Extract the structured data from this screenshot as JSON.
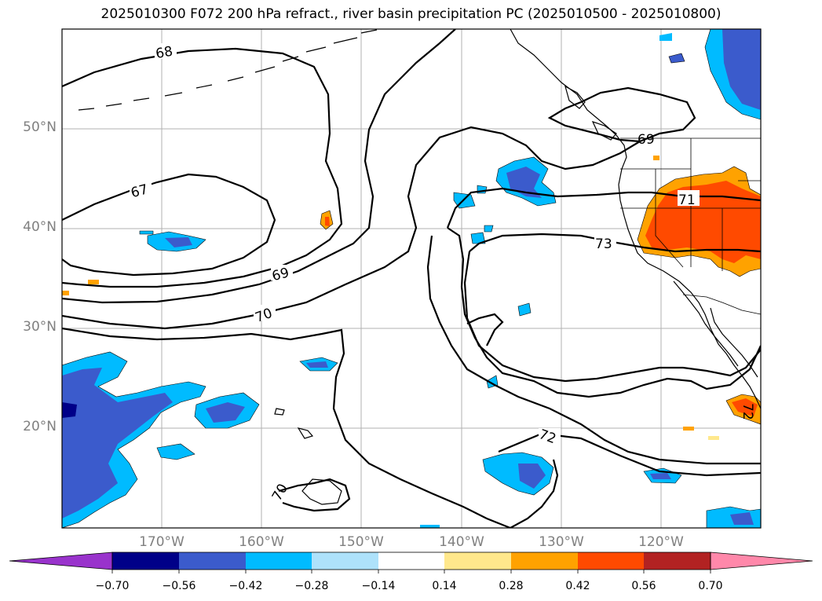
{
  "title": "2025010300 F072 200 hPa refract., river basin precipitation PC (2025010500 - 2025010800)",
  "map": {
    "lat_labels": [
      {
        "text": "50°N",
        "lat": 50
      },
      {
        "text": "40°N",
        "lat": 40
      },
      {
        "text": "30°N",
        "lat": 30
      },
      {
        "text": "20°N",
        "lat": 20
      }
    ],
    "lon_labels": [
      {
        "text": "170°W",
        "lon": -170
      },
      {
        "text": "160°W",
        "lon": -160
      },
      {
        "text": "150°W",
        "lon": -150
      },
      {
        "text": "140°W",
        "lon": -140
      },
      {
        "text": "130°W",
        "lon": -130
      },
      {
        "text": "120°W",
        "lon": -120
      }
    ],
    "extent": {
      "lon_min": -180,
      "lon_max": -110,
      "lat_min": 10,
      "lat_max": 60
    },
    "contour_labels": [
      "67",
      "68",
      "69",
      "70",
      "71",
      "72",
      "73"
    ]
  },
  "colorbar": {
    "ticks": [
      "−0.70",
      "−0.56",
      "−0.42",
      "−0.28",
      "−0.14",
      "0.14",
      "0.28",
      "0.42",
      "0.56",
      "0.70"
    ],
    "colors": [
      "#9933cc",
      "#000088",
      "#3b5bcc",
      "#00bbff",
      "#aee2fb",
      "#ffffff",
      "#ffe88c",
      "#ffa200",
      "#ff4a00",
      "#b22222",
      "#ff88aa"
    ]
  }
}
